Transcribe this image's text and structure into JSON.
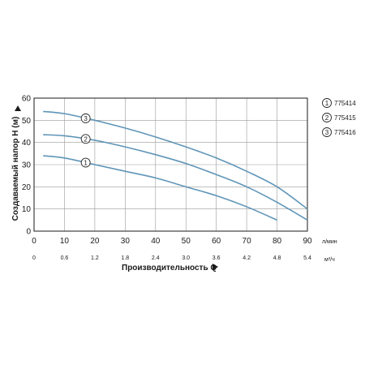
{
  "chart_data": {
    "type": "line",
    "xlabel": "Производительность Q",
    "ylabel": "Создаваемый напор H (м)",
    "x_unit": "л/мин",
    "x2_unit": "м³/ч",
    "xlim": [
      0,
      90
    ],
    "ylim": [
      0,
      60
    ],
    "x_ticks": [
      0,
      10,
      20,
      30,
      40,
      50,
      60,
      70,
      80,
      90
    ],
    "x2_ticks": [
      "0",
      "0.6",
      "1.2",
      "1.8",
      "2.4",
      "3.0",
      "3.6",
      "4.2",
      "4.8",
      "5.4"
    ],
    "y_ticks": [
      0,
      10,
      20,
      30,
      40,
      50,
      60
    ],
    "grid": true,
    "legend_position": "right",
    "series": [
      {
        "name": "775414",
        "marker": "1",
        "marker_x": 17,
        "points": [
          [
            3,
            34
          ],
          [
            10,
            33
          ],
          [
            20,
            30
          ],
          [
            30,
            27
          ],
          [
            40,
            24
          ],
          [
            50,
            20
          ],
          [
            60,
            16
          ],
          [
            70,
            11
          ],
          [
            80,
            5
          ]
        ]
      },
      {
        "name": "775415",
        "marker": "2",
        "marker_x": 17,
        "points": [
          [
            3,
            43.5
          ],
          [
            10,
            43
          ],
          [
            20,
            41
          ],
          [
            30,
            38
          ],
          [
            40,
            34.5
          ],
          [
            50,
            30.5
          ],
          [
            60,
            25.5
          ],
          [
            70,
            20
          ],
          [
            80,
            13
          ],
          [
            90,
            5
          ]
        ]
      },
      {
        "name": "775416",
        "marker": "3",
        "marker_x": 17,
        "points": [
          [
            3,
            54
          ],
          [
            10,
            53
          ],
          [
            20,
            50
          ],
          [
            30,
            46.5
          ],
          [
            40,
            42.5
          ],
          [
            50,
            38
          ],
          [
            60,
            33
          ],
          [
            70,
            27
          ],
          [
            80,
            20
          ],
          [
            90,
            10
          ]
        ]
      }
    ]
  },
  "colors": {
    "curve": "#5f95b8",
    "axis": "#1a1a1a",
    "grid": "#9a9a9a",
    "text": "#1a1a1a"
  }
}
